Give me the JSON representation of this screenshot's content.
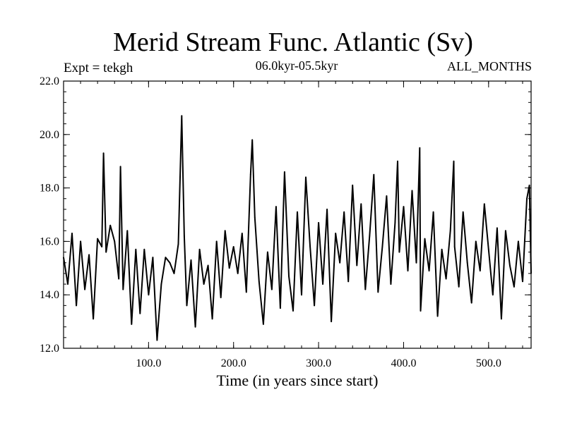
{
  "header": {
    "title": "Merid Stream Func. Atlantic (Sv)",
    "expt": "Expt = tekgh",
    "subtitle": "06.0kyr-05.5kyr",
    "months": "ALL_MONTHS"
  },
  "chart_data": {
    "type": "line",
    "title": "Merid Stream Func. Atlantic (Sv)",
    "subtitle": "06.0kyr-05.5kyr",
    "xlabel": "Time (in years since start)",
    "ylabel": "",
    "xlim": [
      0,
      550
    ],
    "ylim": [
      12.0,
      22.0
    ],
    "xticks": [
      100,
      200,
      300,
      400,
      500
    ],
    "xtick_labels": [
      "100.0",
      "200.0",
      "300.0",
      "400.0",
      "500.0"
    ],
    "yticks": [
      12,
      14,
      16,
      18,
      20,
      22
    ],
    "ytick_labels": [
      "12.0",
      "14.0",
      "16.0",
      "18.0",
      "20.0",
      "22.0"
    ],
    "series": [
      {
        "name": "Expt = tekgh",
        "color": "#000000",
        "x": [
          0,
          5,
          10,
          15,
          20,
          25,
          30,
          35,
          40,
          45,
          47,
          50,
          55,
          60,
          65,
          67,
          70,
          75,
          80,
          85,
          90,
          95,
          100,
          105,
          110,
          115,
          120,
          125,
          130,
          135,
          139,
          142,
          145,
          150,
          155,
          160,
          165,
          170,
          175,
          180,
          185,
          190,
          195,
          200,
          205,
          210,
          215,
          220,
          222,
          225,
          230,
          235,
          240,
          245,
          250,
          255,
          260,
          265,
          270,
          275,
          280,
          285,
          290,
          295,
          300,
          305,
          310,
          315,
          320,
          325,
          330,
          335,
          340,
          345,
          350,
          355,
          360,
          365,
          370,
          375,
          380,
          385,
          390,
          393,
          395,
          400,
          405,
          410,
          415,
          419,
          420,
          425,
          430,
          435,
          440,
          445,
          450,
          455,
          459,
          460,
          465,
          470,
          475,
          480,
          485,
          490,
          495,
          500,
          505,
          510,
          515,
          520,
          525,
          530,
          535,
          540,
          545,
          548,
          550
        ],
        "y": [
          15.4,
          14.4,
          16.3,
          13.6,
          16.0,
          14.2,
          15.5,
          13.1,
          16.1,
          15.8,
          19.3,
          15.6,
          16.6,
          16.0,
          14.6,
          18.8,
          14.2,
          16.4,
          12.9,
          15.7,
          13.3,
          15.7,
          14.0,
          15.4,
          12.3,
          14.4,
          15.4,
          15.2,
          14.8,
          15.9,
          20.7,
          16.2,
          13.6,
          15.3,
          12.8,
          15.7,
          14.4,
          15.1,
          13.1,
          16.0,
          13.9,
          16.4,
          15.0,
          15.8,
          14.8,
          16.3,
          14.1,
          18.5,
          19.8,
          16.9,
          14.5,
          12.9,
          15.6,
          14.2,
          17.3,
          13.5,
          18.6,
          14.7,
          13.4,
          17.1,
          14.0,
          18.4,
          15.8,
          13.6,
          16.7,
          14.4,
          17.2,
          13.0,
          16.3,
          15.2,
          17.1,
          14.5,
          18.1,
          15.1,
          17.4,
          14.2,
          16.2,
          18.5,
          14.1,
          15.8,
          17.7,
          14.4,
          16.7,
          19.0,
          15.6,
          17.3,
          14.9,
          17.9,
          15.2,
          19.5,
          13.4,
          16.1,
          14.9,
          17.1,
          13.2,
          15.7,
          14.6,
          16.4,
          19.0,
          15.8,
          14.3,
          17.1,
          15.2,
          13.7,
          16.0,
          14.9,
          17.4,
          15.7,
          14.0,
          16.5,
          13.1,
          16.4,
          15.1,
          14.3,
          16.0,
          14.5,
          17.6,
          18.1,
          14.8
        ]
      }
    ]
  }
}
